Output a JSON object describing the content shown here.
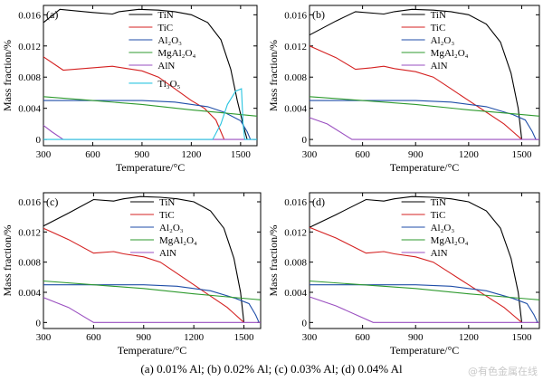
{
  "caption": "(a) 0.01% Al; (b) 0.02% Al; (c) 0.03% Al; (d) 0.04% Al",
  "watermark": "@有色金属在线",
  "colors": {
    "TiN": "#000000",
    "TiC": "#d42020",
    "Al2O3": "#1f4ea8",
    "MgAl2O4": "#2e9a2e",
    "AlN": "#9a4fc0",
    "Ti3O5": "#29c4e0"
  },
  "chart_data": [
    {
      "panel": "(a)",
      "type": "line",
      "xlabel": "Temperature/°C",
      "ylabel": "Mass fraction/%",
      "xlim": [
        300,
        1600
      ],
      "ylim": [
        -0.0008,
        0.0172
      ],
      "xticks": [
        300,
        600,
        900,
        1200,
        1500
      ],
      "yticks": [
        0,
        0.004,
        0.008,
        0.012,
        0.016
      ],
      "legend_position": "top-right",
      "series": [
        {
          "name": "TiN",
          "key": "TiN",
          "points": [
            [
              300,
              0.015
            ],
            [
              400,
              0.0167
            ],
            [
              600,
              0.0163
            ],
            [
              720,
              0.0161
            ],
            [
              760,
              0.0164
            ],
            [
              880,
              0.0167
            ],
            [
              1000,
              0.0166
            ],
            [
              1100,
              0.0164
            ],
            [
              1200,
              0.016
            ],
            [
              1300,
              0.015
            ],
            [
              1380,
              0.0128
            ],
            [
              1440,
              0.009
            ],
            [
              1480,
              0.005
            ],
            [
              1520,
              0.0015
            ],
            [
              1540,
              0
            ]
          ]
        },
        {
          "name": "TiC",
          "key": "TiC",
          "points": [
            [
              300,
              0.0106
            ],
            [
              420,
              0.0089
            ],
            [
              600,
              0.0092
            ],
            [
              720,
              0.0094
            ],
            [
              780,
              0.0092
            ],
            [
              900,
              0.0088
            ],
            [
              1000,
              0.008
            ],
            [
              1100,
              0.0065
            ],
            [
              1200,
              0.005
            ],
            [
              1280,
              0.004
            ],
            [
              1350,
              0.0025
            ],
            [
              1400,
              0
            ]
          ]
        },
        {
          "name": "Al₂O₃",
          "key": "Al2O3",
          "points": [
            [
              300,
              0.005
            ],
            [
              600,
              0.005
            ],
            [
              900,
              0.005
            ],
            [
              1100,
              0.0048
            ],
            [
              1300,
              0.0042
            ],
            [
              1400,
              0.0035
            ],
            [
              1500,
              0.0024
            ],
            [
              1540,
              0.001
            ],
            [
              1560,
              0
            ]
          ]
        },
        {
          "name": "MgAl₂O₄",
          "key": "MgAl2O4",
          "points": [
            [
              300,
              0.0055
            ],
            [
              600,
              0.005
            ],
            [
              900,
              0.0045
            ],
            [
              1200,
              0.0038
            ],
            [
              1400,
              0.0034
            ],
            [
              1550,
              0.0031
            ],
            [
              1600,
              0.003
            ]
          ]
        },
        {
          "name": "AlN",
          "key": "AlN",
          "points": [
            [
              300,
              0.0018
            ],
            [
              350,
              0.001
            ],
            [
              420,
              0
            ],
            [
              1600,
              0
            ]
          ]
        },
        {
          "name": "Ti₃O₅",
          "key": "Ti3O5",
          "points": [
            [
              300,
              0
            ],
            [
              1330,
              0
            ],
            [
              1380,
              0.002
            ],
            [
              1420,
              0.0045
            ],
            [
              1470,
              0.0062
            ],
            [
              1505,
              0.0065
            ],
            [
              1515,
              0.002
            ],
            [
              1525,
              0
            ],
            [
              1600,
              0
            ]
          ]
        }
      ]
    },
    {
      "panel": "(b)",
      "type": "line",
      "xlabel": "Temperature/°C",
      "ylabel": "Mass fraction/%",
      "xlim": [
        300,
        1600
      ],
      "ylim": [
        -0.0008,
        0.0172
      ],
      "xticks": [
        300,
        600,
        900,
        1200,
        1500
      ],
      "yticks": [
        0,
        0.004,
        0.008,
        0.012,
        0.016
      ],
      "legend_position": "top-right",
      "series": [
        {
          "name": "TiN",
          "key": "TiN",
          "points": [
            [
              300,
              0.0134
            ],
            [
              450,
              0.0152
            ],
            [
              560,
              0.0164
            ],
            [
              720,
              0.0161
            ],
            [
              780,
              0.0164
            ],
            [
              880,
              0.0167
            ],
            [
              1000,
              0.0166
            ],
            [
              1100,
              0.0164
            ],
            [
              1200,
              0.016
            ],
            [
              1300,
              0.0148
            ],
            [
              1380,
              0.0125
            ],
            [
              1440,
              0.0085
            ],
            [
              1480,
              0.004
            ],
            [
              1500,
              0
            ]
          ]
        },
        {
          "name": "TiC",
          "key": "TiC",
          "points": [
            [
              300,
              0.012
            ],
            [
              450,
              0.0105
            ],
            [
              560,
              0.009
            ],
            [
              650,
              0.0092
            ],
            [
              720,
              0.0094
            ],
            [
              780,
              0.0091
            ],
            [
              900,
              0.0087
            ],
            [
              1000,
              0.008
            ],
            [
              1100,
              0.0065
            ],
            [
              1200,
              0.005
            ],
            [
              1300,
              0.0035
            ],
            [
              1400,
              0.002
            ],
            [
              1450,
              0.001
            ],
            [
              1500,
              0
            ]
          ]
        },
        {
          "name": "Al₂O₃",
          "key": "Al2O3",
          "points": [
            [
              300,
              0.005
            ],
            [
              600,
              0.005
            ],
            [
              900,
              0.005
            ],
            [
              1100,
              0.0048
            ],
            [
              1300,
              0.0042
            ],
            [
              1450,
              0.0032
            ],
            [
              1520,
              0.0025
            ],
            [
              1560,
              0.001
            ],
            [
              1580,
              0
            ]
          ]
        },
        {
          "name": "MgAl₂O₄",
          "key": "MgAl2O4",
          "points": [
            [
              300,
              0.0055
            ],
            [
              600,
              0.005
            ],
            [
              900,
              0.0045
            ],
            [
              1200,
              0.0038
            ],
            [
              1400,
              0.0034
            ],
            [
              1550,
              0.0031
            ],
            [
              1600,
              0.003
            ]
          ]
        },
        {
          "name": "AlN",
          "key": "AlN",
          "points": [
            [
              300,
              0.0028
            ],
            [
              400,
              0.002
            ],
            [
              540,
              0
            ],
            [
              1600,
              0
            ]
          ]
        }
      ]
    },
    {
      "panel": "(c)",
      "type": "line",
      "xlabel": "Temperature/°C",
      "ylabel": "Mass fraction/%",
      "xlim": [
        300,
        1600
      ],
      "ylim": [
        -0.0008,
        0.0172
      ],
      "xticks": [
        300,
        600,
        900,
        1200,
        1500
      ],
      "yticks": [
        0,
        0.004,
        0.008,
        0.012,
        0.016
      ],
      "legend_position": "top-right",
      "series": [
        {
          "name": "TiN",
          "key": "TiN",
          "points": [
            [
              300,
              0.0128
            ],
            [
              450,
              0.0145
            ],
            [
              600,
              0.0163
            ],
            [
              720,
              0.0161
            ],
            [
              780,
              0.0164
            ],
            [
              880,
              0.0167
            ],
            [
              1000,
              0.0166
            ],
            [
              1100,
              0.0164
            ],
            [
              1200,
              0.016
            ],
            [
              1300,
              0.0148
            ],
            [
              1380,
              0.0125
            ],
            [
              1440,
              0.0085
            ],
            [
              1480,
              0.004
            ],
            [
              1500,
              0
            ]
          ]
        },
        {
          "name": "TiC",
          "key": "TiC",
          "points": [
            [
              300,
              0.0125
            ],
            [
              450,
              0.011
            ],
            [
              600,
              0.0092
            ],
            [
              720,
              0.0094
            ],
            [
              780,
              0.0091
            ],
            [
              900,
              0.0087
            ],
            [
              1000,
              0.008
            ],
            [
              1100,
              0.0065
            ],
            [
              1200,
              0.005
            ],
            [
              1300,
              0.0035
            ],
            [
              1400,
              0.002
            ],
            [
              1450,
              0.001
            ],
            [
              1500,
              0
            ]
          ]
        },
        {
          "name": "Al₂O₃",
          "key": "Al2O3",
          "points": [
            [
              300,
              0.005
            ],
            [
              600,
              0.005
            ],
            [
              900,
              0.005
            ],
            [
              1100,
              0.0048
            ],
            [
              1300,
              0.0042
            ],
            [
              1450,
              0.0032
            ],
            [
              1530,
              0.0025
            ],
            [
              1570,
              0.001
            ],
            [
              1590,
              0
            ]
          ]
        },
        {
          "name": "MgAl₂O₄",
          "key": "MgAl2O4",
          "points": [
            [
              300,
              0.0055
            ],
            [
              600,
              0.005
            ],
            [
              900,
              0.0045
            ],
            [
              1200,
              0.0038
            ],
            [
              1400,
              0.0034
            ],
            [
              1550,
              0.0031
            ],
            [
              1600,
              0.003
            ]
          ]
        },
        {
          "name": "AlN",
          "key": "AlN",
          "points": [
            [
              300,
              0.0033
            ],
            [
              450,
              0.002
            ],
            [
              600,
              0
            ],
            [
              1600,
              0
            ]
          ]
        }
      ]
    },
    {
      "panel": "(d)",
      "type": "line",
      "xlabel": "Temperature/°C",
      "ylabel": "Mass fraction/%",
      "xlim": [
        300,
        1600
      ],
      "ylim": [
        -0.0008,
        0.0172
      ],
      "xticks": [
        300,
        600,
        900,
        1200,
        1500
      ],
      "yticks": [
        0,
        0.004,
        0.008,
        0.012,
        0.016
      ],
      "legend_position": "top-right",
      "series": [
        {
          "name": "TiN",
          "key": "TiN",
          "points": [
            [
              300,
              0.0126
            ],
            [
              450,
              0.0143
            ],
            [
              620,
              0.0163
            ],
            [
              720,
              0.0161
            ],
            [
              780,
              0.0164
            ],
            [
              880,
              0.0167
            ],
            [
              1000,
              0.0166
            ],
            [
              1100,
              0.0164
            ],
            [
              1200,
              0.016
            ],
            [
              1300,
              0.0148
            ],
            [
              1380,
              0.0125
            ],
            [
              1440,
              0.0085
            ],
            [
              1480,
              0.004
            ],
            [
              1500,
              0
            ]
          ]
        },
        {
          "name": "TiC",
          "key": "TiC",
          "points": [
            [
              300,
              0.0126
            ],
            [
              450,
              0.0112
            ],
            [
              620,
              0.0092
            ],
            [
              720,
              0.0094
            ],
            [
              780,
              0.0091
            ],
            [
              900,
              0.0087
            ],
            [
              1000,
              0.008
            ],
            [
              1100,
              0.0065
            ],
            [
              1200,
              0.005
            ],
            [
              1300,
              0.0035
            ],
            [
              1400,
              0.002
            ],
            [
              1450,
              0.001
            ],
            [
              1500,
              0
            ]
          ]
        },
        {
          "name": "Al₂O₃",
          "key": "Al2O3",
          "points": [
            [
              300,
              0.005
            ],
            [
              600,
              0.005
            ],
            [
              900,
              0.005
            ],
            [
              1100,
              0.0048
            ],
            [
              1300,
              0.0042
            ],
            [
              1450,
              0.0032
            ],
            [
              1530,
              0.0025
            ],
            [
              1570,
              0.001
            ],
            [
              1590,
              0
            ]
          ]
        },
        {
          "name": "MgAl₂O₄",
          "key": "MgAl2O4",
          "points": [
            [
              300,
              0.0055
            ],
            [
              600,
              0.005
            ],
            [
              900,
              0.0045
            ],
            [
              1200,
              0.0038
            ],
            [
              1400,
              0.0034
            ],
            [
              1550,
              0.0031
            ],
            [
              1600,
              0.003
            ]
          ]
        },
        {
          "name": "AlN",
          "key": "AlN",
          "points": [
            [
              300,
              0.0034
            ],
            [
              450,
              0.0022
            ],
            [
              660,
              0
            ],
            [
              1600,
              0
            ]
          ]
        }
      ]
    }
  ]
}
